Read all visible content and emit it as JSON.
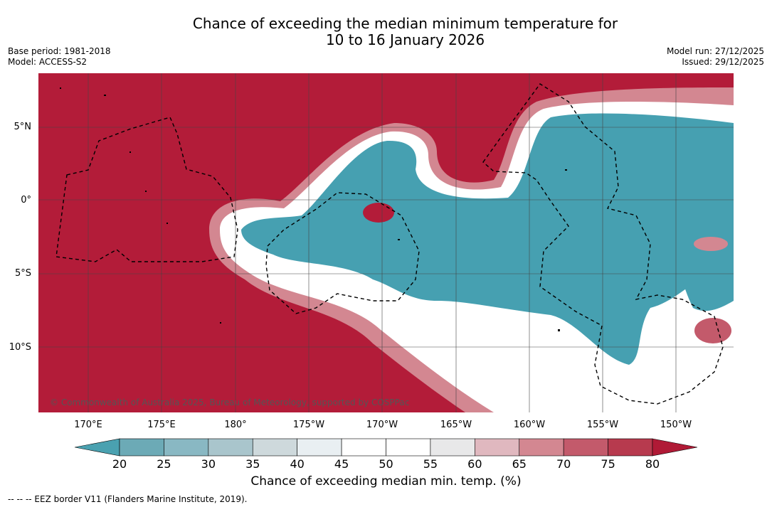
{
  "title": {
    "line1": "Chance of exceeding the median minimum temperature for",
    "line2": "10 to 16 January 2026"
  },
  "meta_left": {
    "base_period": "Base period: 1981-2018",
    "model": "Model: ACCESS-S2"
  },
  "meta_right": {
    "model_run": "Model run: 27/12/2025",
    "issued": "Issued: 29/12/2025"
  },
  "map": {
    "lat_labels": [
      "5°N",
      "0°",
      "5°S",
      "10°S"
    ],
    "lon_labels": [
      "170°E",
      "175°E",
      "180°",
      "175°W",
      "170°W",
      "165°W",
      "160°W",
      "155°W",
      "150°W"
    ],
    "copyright": "© Commonwealth of Australia 2025, Bureau of Meteorology, supported by COSPPac",
    "colors": {
      "above": "#b31c39",
      "below": "#46a0b1",
      "neutral": "#ffffff",
      "gridline": "#444444",
      "eez_line": "#000000"
    }
  },
  "colorbar": {
    "ticks": [
      "20",
      "25",
      "30",
      "35",
      "40",
      "45",
      "50",
      "55",
      "60",
      "65",
      "70",
      "75",
      "80"
    ],
    "colors": [
      "#4aa1b0",
      "#6caab6",
      "#89b8c3",
      "#a9c5cc",
      "#ced9dc",
      "#e9eff2",
      "#ffffff",
      "#ffffff",
      "#e8e8e9",
      "#e0b8bf",
      "#d38791",
      "#c35a6b",
      "#b73a4e",
      "#b01a36"
    ],
    "label": "Chance of exceeding median min. temp. (%)"
  },
  "eez_note": "--  --  -- EEZ border V11 (Flanders Marine Institute, 2019)."
}
